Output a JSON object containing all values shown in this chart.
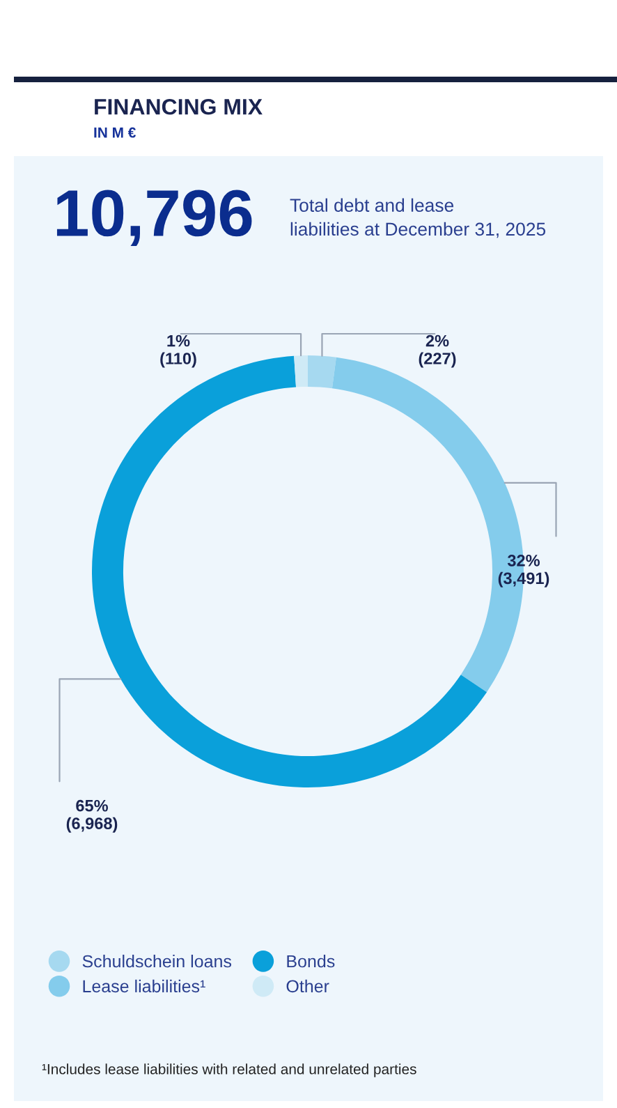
{
  "chart_data": {
    "type": "donut",
    "title": "FINANCING MIX",
    "subtitle": "IN M €",
    "categories": [
      "Schuldschein loans",
      "Lease liabilities¹",
      "Bonds",
      "Other"
    ],
    "values": [
      227,
      3491,
      6968,
      110
    ],
    "colors": [
      "#a6d9f0",
      "#84ccec",
      "#0aa0da",
      "#cfeaf6"
    ],
    "value_labels": [
      "2%\n(227)",
      "32%\n(3,491)",
      "65%\n(6,968)",
      "1%\n(110)"
    ],
    "legend": "bottom",
    "annotations": [
      "10,796",
      "Total debt and lease\nliabilities at December 31, 2025",
      "¹Includes lease liabilities with related and unrelated parties"
    ]
  }
}
